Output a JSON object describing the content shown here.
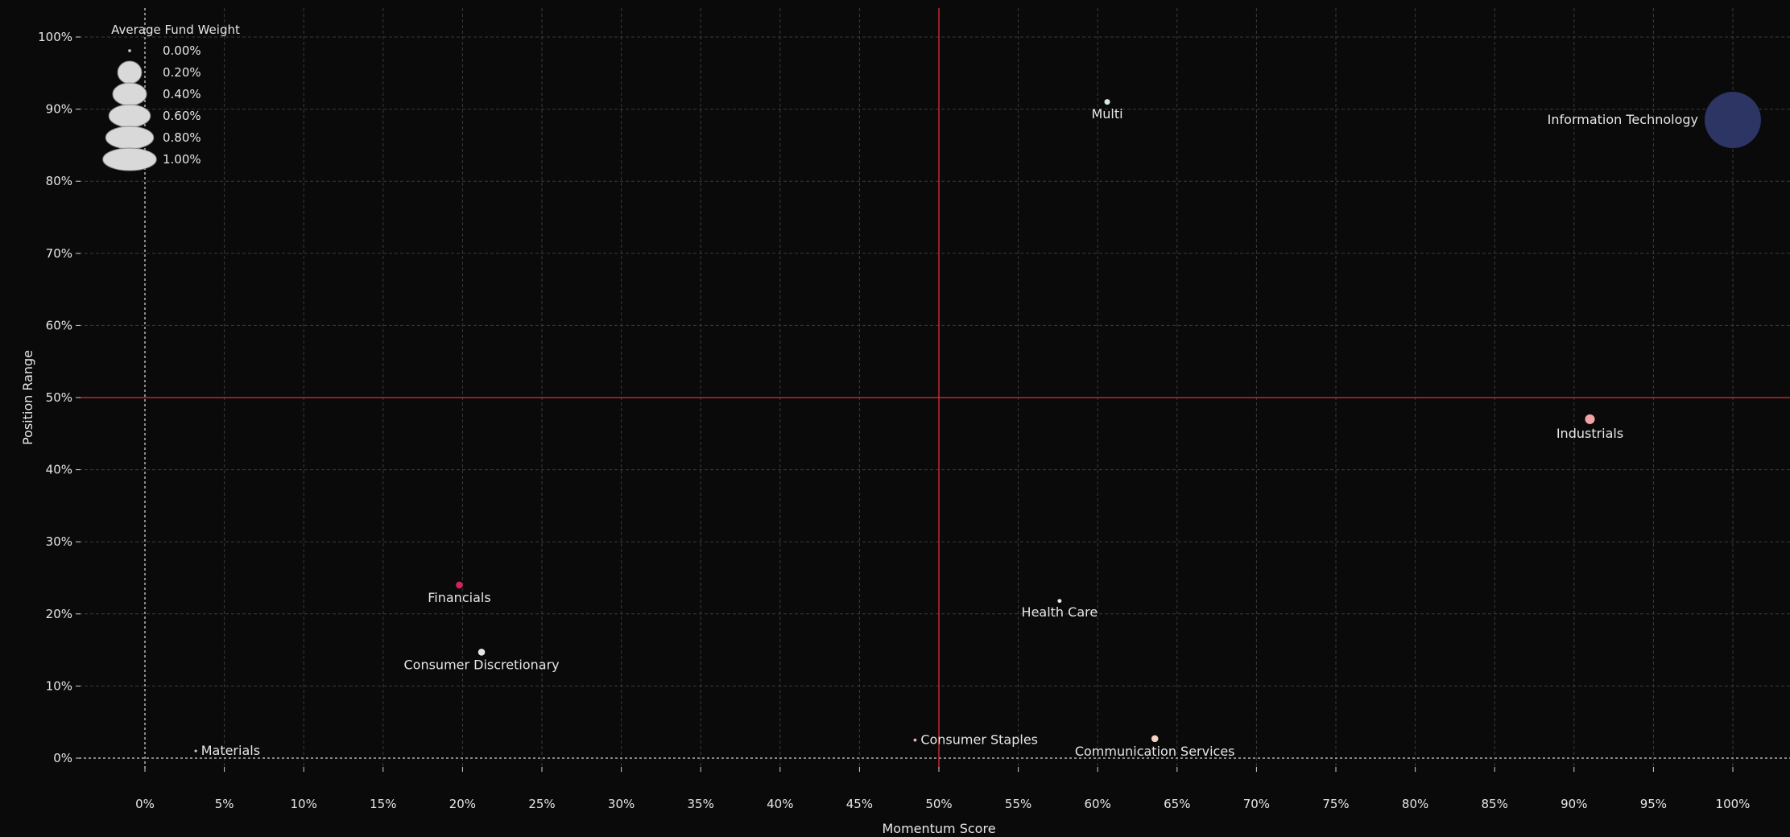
{
  "chart_data": {
    "type": "scatter",
    "title": "",
    "xlabel": "Momentum Score",
    "ylabel": "Position Range",
    "xlim": [
      0,
      100
    ],
    "ylim": [
      0,
      100
    ],
    "x_ticks": [
      "0%",
      "5%",
      "10%",
      "15%",
      "20%",
      "25%",
      "30%",
      "35%",
      "40%",
      "45%",
      "50%",
      "55%",
      "60%",
      "65%",
      "70%",
      "75%",
      "80%",
      "85%",
      "90%",
      "95%",
      "100%"
    ],
    "y_ticks": [
      "0%",
      "10%",
      "20%",
      "30%",
      "40%",
      "50%",
      "60%",
      "70%",
      "80%",
      "90%",
      "100%"
    ],
    "grid": true,
    "reference_lines": {
      "x": 50,
      "y": 50,
      "color": "#d9313d"
    },
    "size_legend": {
      "title": "Average Fund Weight",
      "placement": "top-left",
      "entries": [
        {
          "label": "0.00%",
          "value": 0.0
        },
        {
          "label": "0.20%",
          "value": 0.2
        },
        {
          "label": "0.40%",
          "value": 0.4
        },
        {
          "label": "0.60%",
          "value": 0.6
        },
        {
          "label": "0.80%",
          "value": 0.8
        },
        {
          "label": "1.00%",
          "value": 1.0
        }
      ]
    },
    "points": [
      {
        "label": "Information Technology",
        "x": 100.0,
        "y": 88.5,
        "weight": 1.0,
        "color": "#2c3563",
        "label_pos": "left"
      },
      {
        "label": "Multi",
        "x": 60.6,
        "y": 91.0,
        "weight": 0.01,
        "color": "#d8e6e8",
        "label_pos": "below"
      },
      {
        "label": "Industrials",
        "x": 91.0,
        "y": 47.0,
        "weight": 0.03,
        "color": "#f2a3a3",
        "label_pos": "below"
      },
      {
        "label": "Financials",
        "x": 19.8,
        "y": 24.0,
        "weight": 0.015,
        "color": "#d0245e",
        "label_pos": "below"
      },
      {
        "label": "Health Care",
        "x": 57.6,
        "y": 21.8,
        "weight": 0.005,
        "color": "#e8e8e8",
        "label_pos": "below"
      },
      {
        "label": "Consumer Discretionary",
        "x": 21.2,
        "y": 14.7,
        "weight": 0.015,
        "color": "#e2e6e6",
        "label_pos": "below"
      },
      {
        "label": "Consumer Staples",
        "x": 48.5,
        "y": 2.5,
        "weight": 0.003,
        "color": "#f0b0b0",
        "label_pos": "right"
      },
      {
        "label": "Communication Services",
        "x": 63.6,
        "y": 2.7,
        "weight": 0.015,
        "color": "#f4d4c8",
        "label_pos": "below"
      },
      {
        "label": "Materials",
        "x": 3.2,
        "y": 1.0,
        "weight": 0.001,
        "color": "#cccccc",
        "label_pos": "right"
      }
    ]
  }
}
